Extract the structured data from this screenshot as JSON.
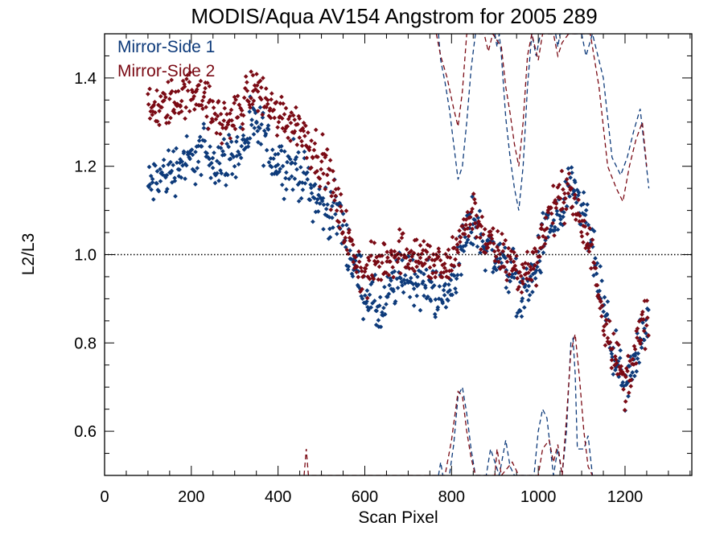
{
  "chart_data": {
    "type": "scatter",
    "title": "MODIS/Aqua AV154 Angstrom for 2005 289",
    "xlabel": "Scan Pixel",
    "ylabel": "L2/L3",
    "xlim": [
      0,
      1354
    ],
    "ylim": [
      0.5,
      1.5
    ],
    "x_ticks": [
      0,
      200,
      400,
      600,
      800,
      1000,
      1200
    ],
    "y_ticks": [
      0.6,
      0.8,
      1.0,
      1.2,
      1.4
    ],
    "x_minor_step": 50,
    "y_minor_step": 0.05,
    "reference_line": {
      "y": 1.0,
      "style": "dotted"
    },
    "legend_position": "top-left",
    "grid": false,
    "series": [
      {
        "name": "Mirror-Side 1",
        "color": "#0d3a7a",
        "points_trend": [
          [
            100,
            1.15
          ],
          [
            120,
            1.17
          ],
          [
            150,
            1.19
          ],
          [
            180,
            1.21
          ],
          [
            200,
            1.21
          ],
          [
            230,
            1.24
          ],
          [
            260,
            1.21
          ],
          [
            290,
            1.22
          ],
          [
            320,
            1.25
          ],
          [
            345,
            1.29
          ],
          [
            365,
            1.27
          ],
          [
            390,
            1.22
          ],
          [
            420,
            1.2
          ],
          [
            450,
            1.19
          ],
          [
            480,
            1.14
          ],
          [
            510,
            1.1
          ],
          [
            540,
            1.09
          ],
          [
            560,
            1.02
          ],
          [
            580,
            0.96
          ],
          [
            600,
            0.92
          ],
          [
            620,
            0.89
          ],
          [
            640,
            0.86
          ],
          [
            660,
            0.92
          ],
          [
            690,
            0.96
          ],
          [
            720,
            0.94
          ],
          [
            760,
            0.92
          ],
          [
            790,
            0.9
          ],
          [
            820,
            1.0
          ],
          [
            850,
            1.08
          ],
          [
            880,
            1.02
          ],
          [
            910,
            0.99
          ],
          [
            940,
            0.96
          ],
          [
            960,
            0.9
          ],
          [
            990,
            0.95
          ],
          [
            1010,
            1.03
          ],
          [
            1030,
            1.07
          ],
          [
            1050,
            1.08
          ],
          [
            1070,
            1.14
          ],
          [
            1090,
            1.12
          ],
          [
            1110,
            1.08
          ],
          [
            1130,
            0.98
          ],
          [
            1150,
            0.88
          ],
          [
            1170,
            0.79
          ],
          [
            1190,
            0.72
          ],
          [
            1200,
            0.68
          ],
          [
            1220,
            0.75
          ],
          [
            1240,
            0.83
          ],
          [
            1254,
            0.87
          ]
        ],
        "points_noise": 0.045,
        "dashed_line": [
          [
            770,
            1.5
          ],
          [
            775,
            1.44
          ],
          [
            785,
            1.39
          ],
          [
            795,
            1.33
          ],
          [
            805,
            1.25
          ],
          [
            815,
            1.17
          ],
          [
            825,
            1.2
          ],
          [
            835,
            1.3
          ],
          [
            845,
            1.42
          ],
          [
            855,
            1.5
          ],
          [
            900,
            1.5
          ],
          [
            905,
            1.47
          ],
          [
            910,
            1.5
          ],
          [
            915,
            1.45
          ],
          [
            925,
            1.31
          ],
          [
            935,
            1.22
          ],
          [
            945,
            1.15
          ],
          [
            955,
            1.1
          ],
          [
            965,
            1.2
          ],
          [
            975,
            1.38
          ],
          [
            985,
            1.5
          ],
          [
            995,
            1.45
          ],
          [
            1005,
            1.5
          ],
          [
            1040,
            1.5
          ],
          [
            1045,
            1.47
          ],
          [
            1050,
            1.5
          ],
          [
            1100,
            1.5
          ],
          [
            1110,
            1.45
          ],
          [
            1125,
            1.5
          ],
          [
            1150,
            1.4
          ],
          [
            1170,
            1.22
          ],
          [
            1190,
            1.18
          ],
          [
            1205,
            1.22
          ],
          [
            1220,
            1.28
          ],
          [
            1235,
            1.33
          ],
          [
            1245,
            1.24
          ],
          [
            1255,
            1.15
          ]
        ],
        "dashed_line_low": [
          [
            770,
            0.5
          ],
          [
            775,
            0.53
          ],
          [
            785,
            0.47
          ],
          [
            795,
            0.5
          ],
          [
            805,
            0.57
          ],
          [
            815,
            0.68
          ],
          [
            825,
            0.7
          ],
          [
            835,
            0.64
          ],
          [
            845,
            0.56
          ],
          [
            855,
            0.5
          ],
          [
            880,
            0.5
          ],
          [
            890,
            0.56
          ],
          [
            900,
            0.53
          ],
          [
            910,
            0.5
          ],
          [
            925,
            0.58
          ],
          [
            935,
            0.52
          ],
          [
            945,
            0.5
          ],
          [
            990,
            0.5
          ],
          [
            1000,
            0.6
          ],
          [
            1010,
            0.65
          ],
          [
            1020,
            0.63
          ],
          [
            1035,
            0.5
          ],
          [
            1045,
            0.56
          ],
          [
            1055,
            0.5
          ],
          [
            1065,
            0.6
          ],
          [
            1075,
            0.8
          ],
          [
            1080,
            0.81
          ],
          [
            1085,
            0.73
          ],
          [
            1090,
            0.56
          ],
          [
            1105,
            0.56
          ],
          [
            1115,
            0.59
          ],
          [
            1125,
            0.5
          ]
        ]
      },
      {
        "name": "Mirror-Side 2",
        "color": "#7a0a14",
        "points_trend": [
          [
            100,
            1.32
          ],
          [
            130,
            1.33
          ],
          [
            160,
            1.35
          ],
          [
            190,
            1.36
          ],
          [
            220,
            1.38
          ],
          [
            240,
            1.33
          ],
          [
            270,
            1.3
          ],
          [
            300,
            1.31
          ],
          [
            325,
            1.35
          ],
          [
            345,
            1.38
          ],
          [
            365,
            1.36
          ],
          [
            390,
            1.32
          ],
          [
            420,
            1.31
          ],
          [
            450,
            1.29
          ],
          [
            480,
            1.24
          ],
          [
            510,
            1.2
          ],
          [
            540,
            1.1
          ],
          [
            560,
            1.04
          ],
          [
            580,
            0.98
          ],
          [
            600,
            0.95
          ],
          [
            620,
            0.97
          ],
          [
            650,
            0.99
          ],
          [
            680,
            1.01
          ],
          [
            720,
            1.0
          ],
          [
            760,
            0.98
          ],
          [
            790,
            0.96
          ],
          [
            820,
            1.04
          ],
          [
            850,
            1.1
          ],
          [
            880,
            1.03
          ],
          [
            910,
            1.0
          ],
          [
            940,
            0.98
          ],
          [
            960,
            0.95
          ],
          [
            990,
            0.98
          ],
          [
            1010,
            1.05
          ],
          [
            1030,
            1.1
          ],
          [
            1050,
            1.12
          ],
          [
            1070,
            1.16
          ],
          [
            1090,
            1.08
          ],
          [
            1110,
            1.04
          ],
          [
            1130,
            0.98
          ],
          [
            1150,
            0.86
          ],
          [
            1170,
            0.8
          ],
          [
            1190,
            0.73
          ],
          [
            1200,
            0.7
          ],
          [
            1220,
            0.77
          ],
          [
            1240,
            0.84
          ],
          [
            1254,
            0.85
          ]
        ],
        "points_noise": 0.04,
        "dashed_line": [
          [
            765,
            1.5
          ],
          [
            775,
            1.45
          ],
          [
            790,
            1.4
          ],
          [
            805,
            1.33
          ],
          [
            815,
            1.29
          ],
          [
            825,
            1.37
          ],
          [
            835,
            1.5
          ],
          [
            875,
            1.5
          ],
          [
            885,
            1.46
          ],
          [
            895,
            1.5
          ],
          [
            915,
            1.47
          ],
          [
            925,
            1.38
          ],
          [
            935,
            1.32
          ],
          [
            945,
            1.25
          ],
          [
            955,
            1.2
          ],
          [
            965,
            1.3
          ],
          [
            975,
            1.45
          ],
          [
            985,
            1.5
          ],
          [
            1000,
            1.44
          ],
          [
            1010,
            1.5
          ],
          [
            1035,
            1.5
          ],
          [
            1045,
            1.45
          ],
          [
            1055,
            1.48
          ],
          [
            1070,
            1.5
          ],
          [
            1100,
            1.5
          ],
          [
            1120,
            1.5
          ],
          [
            1140,
            1.38
          ],
          [
            1160,
            1.2
          ],
          [
            1180,
            1.15
          ],
          [
            1195,
            1.12
          ],
          [
            1210,
            1.2
          ],
          [
            1225,
            1.26
          ],
          [
            1240,
            1.3
          ],
          [
            1250,
            1.2
          ]
        ],
        "dashed_line_low": [
          [
            460,
            0.5
          ],
          [
            465,
            0.56
          ],
          [
            470,
            0.5
          ],
          [
            775,
            0.5
          ],
          [
            785,
            0.5
          ],
          [
            800,
            0.58
          ],
          [
            815,
            0.69
          ],
          [
            825,
            0.68
          ],
          [
            835,
            0.6
          ],
          [
            845,
            0.54
          ],
          [
            855,
            0.5
          ],
          [
            900,
            0.5
          ],
          [
            905,
            0.56
          ],
          [
            915,
            0.5
          ],
          [
            940,
            0.53
          ],
          [
            955,
            0.5
          ],
          [
            1000,
            0.5
          ],
          [
            1010,
            0.56
          ],
          [
            1025,
            0.58
          ],
          [
            1035,
            0.53
          ],
          [
            1045,
            0.57
          ],
          [
            1055,
            0.5
          ],
          [
            1065,
            0.63
          ],
          [
            1075,
            0.78
          ],
          [
            1085,
            0.82
          ],
          [
            1095,
            0.72
          ],
          [
            1105,
            0.6
          ],
          [
            1115,
            0.52
          ],
          [
            1125,
            0.5
          ]
        ]
      }
    ]
  }
}
